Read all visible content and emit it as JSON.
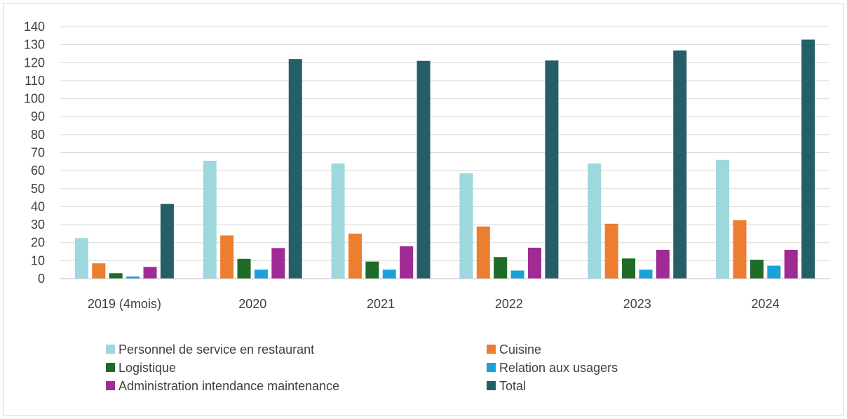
{
  "chart_data": {
    "type": "bar",
    "title": "",
    "xlabel": "",
    "ylabel": "",
    "ylim": [
      0,
      140
    ],
    "y_ticks": [
      0,
      10,
      20,
      30,
      40,
      50,
      60,
      70,
      80,
      90,
      100,
      110,
      120,
      130,
      140
    ],
    "grid": true,
    "legend_position": "bottom",
    "categories": [
      "2019 (4mois)",
      "2020",
      "2021",
      "2022",
      "2023",
      "2024"
    ],
    "series": [
      {
        "name": "Personnel de service en restaurant",
        "color": "#9dd8dc",
        "values": [
          22.5,
          65.5,
          64,
          58.5,
          64,
          66
        ]
      },
      {
        "name": "Cuisine",
        "color": "#ed7d31",
        "values": [
          8.5,
          24,
          25,
          29,
          30.5,
          32.5
        ]
      },
      {
        "name": "Logistique",
        "color": "#1e6b27",
        "values": [
          3,
          11,
          9.5,
          12,
          11.2,
          10.5
        ]
      },
      {
        "name": "Relation aux usagers",
        "color": "#1aa0db",
        "values": [
          1.2,
          5,
          5,
          4.5,
          5,
          7.2
        ]
      },
      {
        "name": "Administration intendance maintenance",
        "color": "#a02b93",
        "values": [
          6.5,
          17,
          18,
          17.2,
          16,
          16
        ]
      },
      {
        "name": "Total",
        "color": "#245f68",
        "values": [
          41.5,
          122,
          121,
          121.2,
          126.8,
          132.8
        ]
      }
    ]
  }
}
